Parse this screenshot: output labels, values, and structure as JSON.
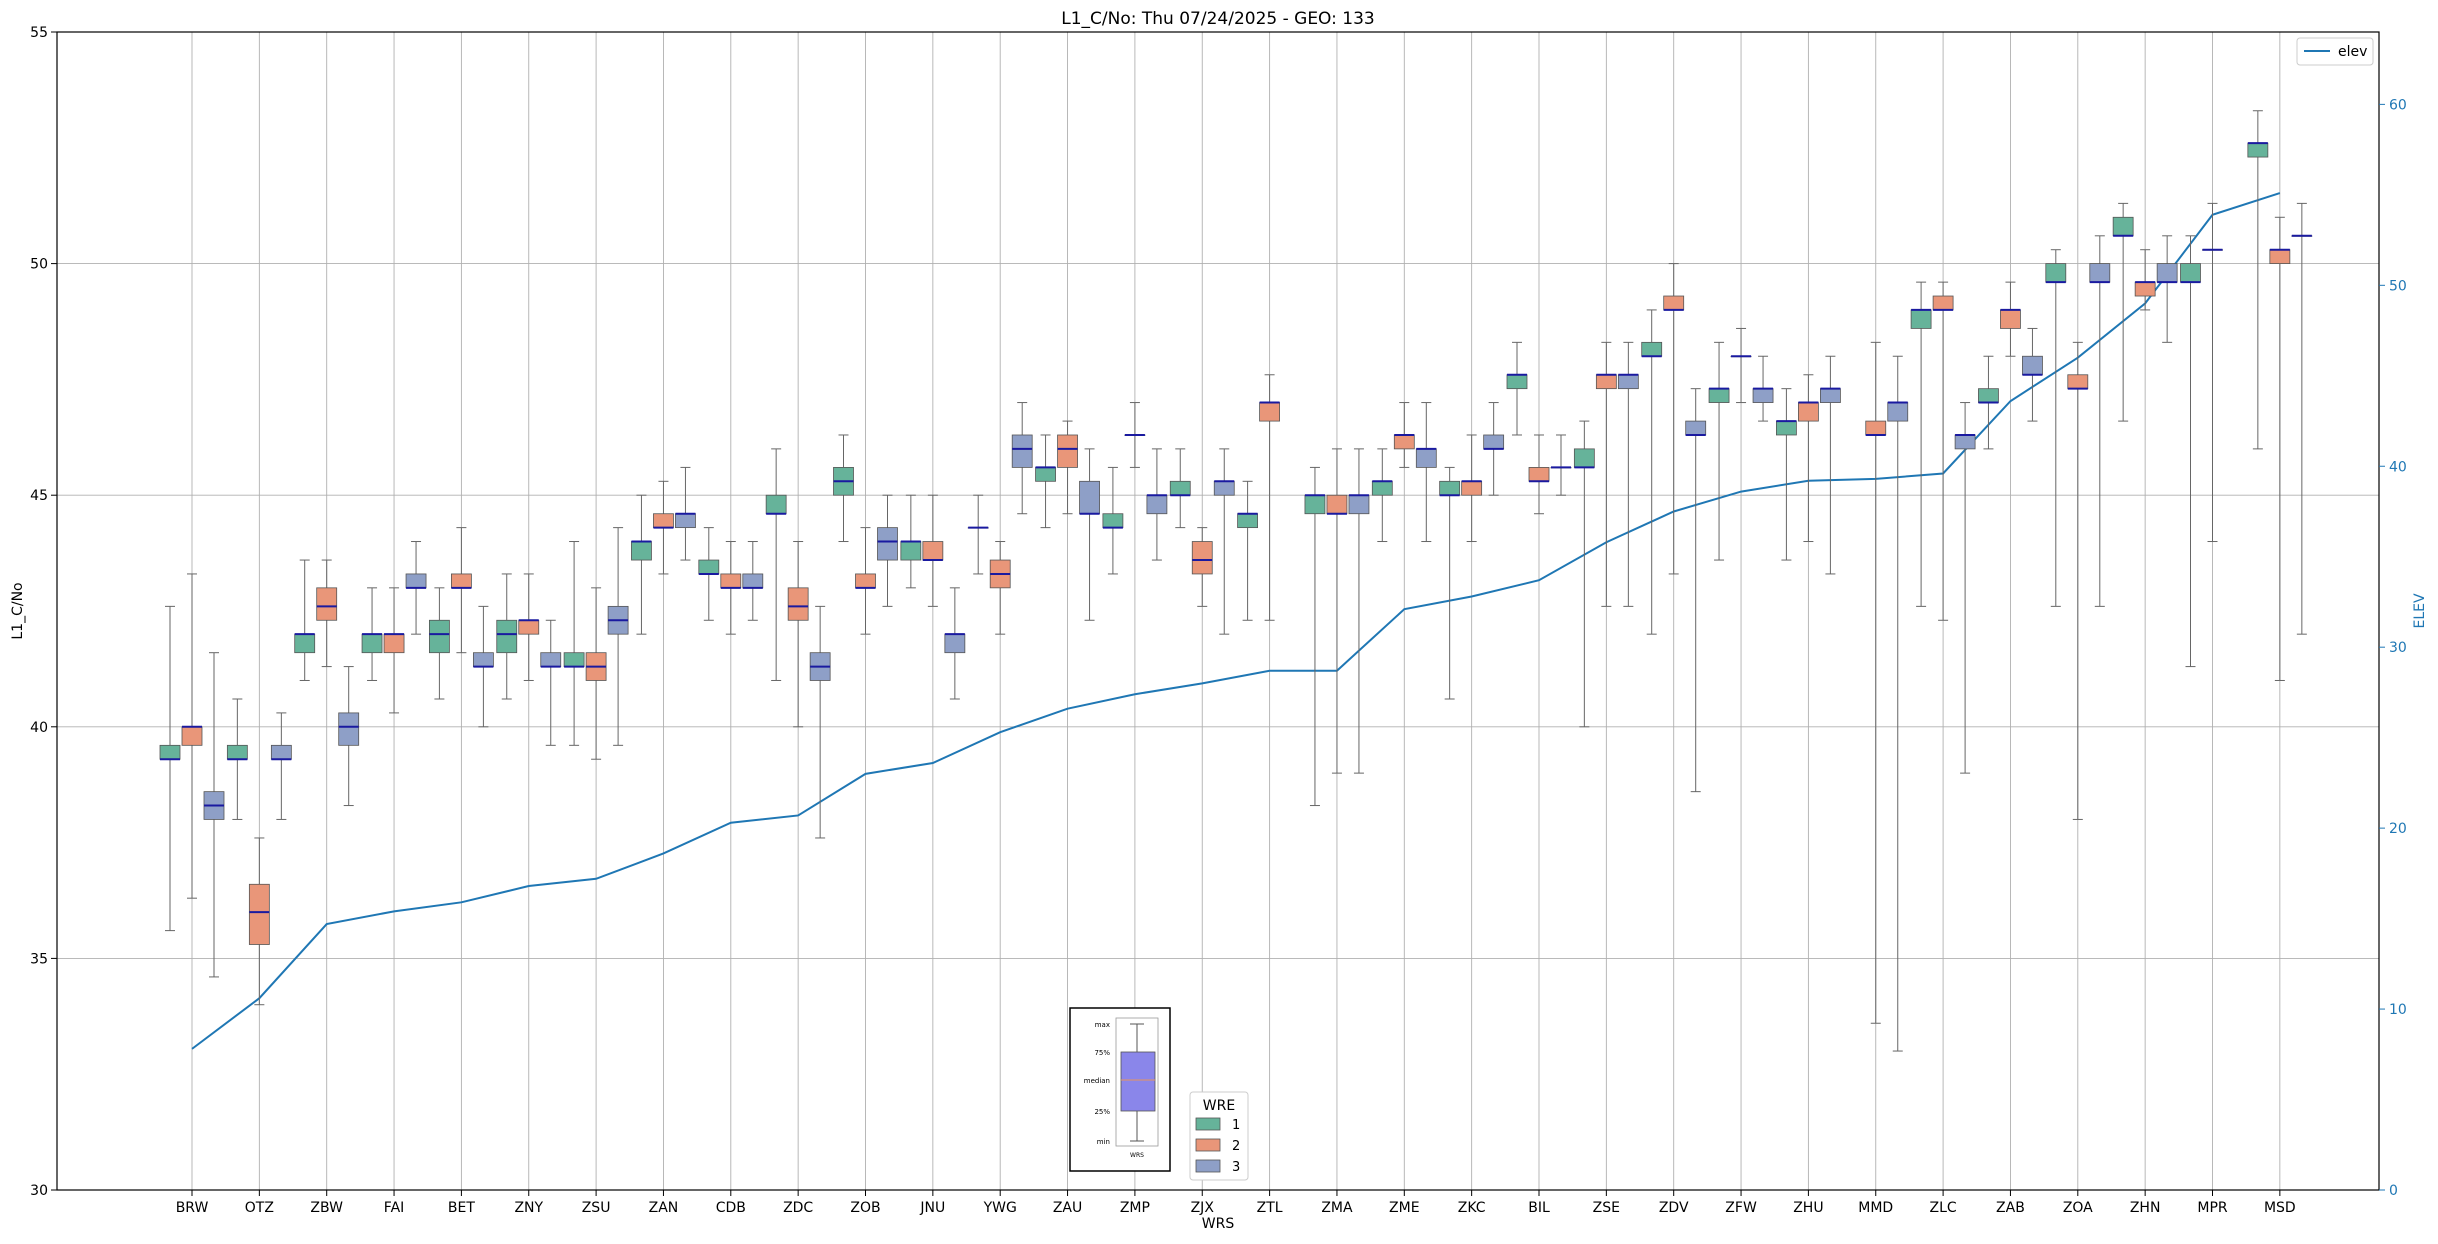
{
  "chart_data": {
    "type": "box",
    "title": "L1_C/No: Thu 07/24/2025 - GEO: 133",
    "xlabel": "WRS",
    "ylabel": "L1_C/No",
    "y2label": "ELEV",
    "ylim": [
      30,
      55
    ],
    "y2lim": [
      0,
      64
    ],
    "yticks": [
      30,
      35,
      40,
      45,
      50,
      55
    ],
    "y2ticks": [
      0,
      10,
      20,
      30,
      40,
      50,
      60
    ],
    "grid": true,
    "categories": [
      "BRW",
      "OTZ",
      "ZBW",
      "FAI",
      "BET",
      "ZNY",
      "ZSU",
      "ZAN",
      "CDB",
      "ZDC",
      "ZOB",
      "JNU",
      "YWG",
      "ZAU",
      "ZMP",
      "ZJX",
      "ZTL",
      "ZMA",
      "ZME",
      "ZKC",
      "BIL",
      "ZSE",
      "ZDV",
      "ZFW",
      "ZHU",
      "MMD",
      "ZLC",
      "ZAB",
      "ZOA",
      "ZHN",
      "MPR",
      "MSD"
    ],
    "legend_wre": {
      "title": "WRE",
      "entries": [
        {
          "label": "1",
          "color": "#66b39a"
        },
        {
          "label": "2",
          "color": "#e99679"
        },
        {
          "label": "3",
          "color": "#8e9fc7"
        }
      ]
    },
    "legend_elev": {
      "label": "elev",
      "color": "#1f77b4"
    },
    "key_labels": {
      "max": "max",
      "p75": "75%",
      "median": "median",
      "p25": "25%",
      "min": "min",
      "wrs": "WRS"
    },
    "elev": [
      7.8,
      10.6,
      14.7,
      15.4,
      15.9,
      16.8,
      17.2,
      18.6,
      20.3,
      20.7,
      23.0,
      23.6,
      25.3,
      26.6,
      27.4,
      28.0,
      28.7,
      28.7,
      32.1,
      32.8,
      33.7,
      35.8,
      37.5,
      38.6,
      39.2,
      39.3,
      39.6,
      43.6,
      46.0,
      49.0,
      53.9,
      55.1
    ],
    "series": [
      {
        "name": "1",
        "color": "#66b39a",
        "boxes": [
          {
            "cat": 0,
            "min": 35.6,
            "q1": 39.3,
            "med": 39.3,
            "q3": 39.6,
            "max": 42.6
          },
          {
            "cat": 1,
            "min": 38.0,
            "q1": 39.3,
            "med": 39.3,
            "q3": 39.6,
            "max": 40.6
          },
          {
            "cat": 2,
            "min": 41.0,
            "q1": 41.6,
            "med": 42.0,
            "q3": 42.0,
            "max": 43.6
          },
          {
            "cat": 3,
            "min": 41.0,
            "q1": 41.6,
            "med": 42.0,
            "q3": 42.0,
            "max": 43.0
          },
          {
            "cat": 4,
            "min": 40.6,
            "q1": 41.6,
            "med": 42.0,
            "q3": 42.3,
            "max": 43.0
          },
          {
            "cat": 5,
            "min": 40.6,
            "q1": 41.6,
            "med": 42.0,
            "q3": 42.3,
            "max": 43.3
          },
          {
            "cat": 6,
            "min": 39.6,
            "q1": 41.3,
            "med": 41.3,
            "q3": 41.6,
            "max": 44.0
          },
          {
            "cat": 7,
            "min": 42.0,
            "q1": 43.6,
            "med": 44.0,
            "q3": 44.0,
            "max": 45.0
          },
          {
            "cat": 8,
            "min": 42.3,
            "q1": 43.3,
            "med": 43.3,
            "q3": 43.6,
            "max": 44.3
          },
          {
            "cat": 9,
            "min": 41.0,
            "q1": 44.6,
            "med": 44.6,
            "q3": 45.0,
            "max": 46.0
          },
          {
            "cat": 10,
            "min": 44.0,
            "q1": 45.0,
            "med": 45.3,
            "q3": 45.6,
            "max": 46.3
          },
          {
            "cat": 11,
            "min": 43.0,
            "q1": 43.6,
            "med": 44.0,
            "q3": 44.0,
            "max": 45.0
          },
          {
            "cat": 12,
            "min": 43.3,
            "q1": 44.3,
            "med": 44.3,
            "q3": 44.3,
            "max": 45.0
          },
          {
            "cat": 13,
            "min": 44.3,
            "q1": 45.3,
            "med": 45.6,
            "q3": 45.6,
            "max": 46.3
          },
          {
            "cat": 14,
            "min": 43.3,
            "q1": 44.3,
            "med": 44.3,
            "q3": 44.6,
            "max": 45.6
          },
          {
            "cat": 15,
            "min": 44.3,
            "q1": 45.0,
            "med": 45.0,
            "q3": 45.3,
            "max": 46.0
          },
          {
            "cat": 16,
            "min": 42.3,
            "q1": 44.3,
            "med": 44.6,
            "q3": 44.6,
            "max": 45.3
          },
          {
            "cat": 17,
            "min": 38.3,
            "q1": 44.6,
            "med": 45.0,
            "q3": 45.0,
            "max": 45.6
          },
          {
            "cat": 18,
            "min": 44.0,
            "q1": 45.0,
            "med": 45.3,
            "q3": 45.3,
            "max": 46.0
          },
          {
            "cat": 19,
            "min": 40.6,
            "q1": 45.0,
            "med": 45.0,
            "q3": 45.3,
            "max": 45.6
          },
          {
            "cat": 20,
            "min": 46.3,
            "q1": 47.3,
            "med": 47.6,
            "q3": 47.6,
            "max": 48.3
          },
          {
            "cat": 21,
            "min": 40.0,
            "q1": 45.6,
            "med": 45.6,
            "q3": 46.0,
            "max": 46.6
          },
          {
            "cat": 22,
            "min": 42.0,
            "q1": 48.0,
            "med": 48.0,
            "q3": 48.3,
            "max": 49.0
          },
          {
            "cat": 23,
            "min": 43.6,
            "q1": 47.0,
            "med": 47.3,
            "q3": 47.3,
            "max": 48.3
          },
          {
            "cat": 24,
            "min": 43.6,
            "q1": 46.3,
            "med": 46.6,
            "q3": 46.6,
            "max": 47.3
          },
          {
            "cat": 26,
            "min": 42.6,
            "q1": 48.6,
            "med": 49.0,
            "q3": 49.0,
            "max": 49.6
          },
          {
            "cat": 27,
            "min": 46.0,
            "q1": 47.0,
            "med": 47.0,
            "q3": 47.3,
            "max": 48.0
          },
          {
            "cat": 28,
            "min": 42.6,
            "q1": 49.6,
            "med": 49.6,
            "q3": 50.0,
            "max": 50.3
          },
          {
            "cat": 29,
            "min": 46.6,
            "q1": 50.6,
            "med": 50.6,
            "q3": 51.0,
            "max": 51.3
          },
          {
            "cat": 30,
            "min": 41.3,
            "q1": 49.6,
            "med": 49.6,
            "q3": 50.0,
            "max": 50.6
          },
          {
            "cat": 31,
            "min": 46.0,
            "q1": 52.3,
            "med": 52.6,
            "q3": 52.6,
            "max": 53.3
          }
        ]
      },
      {
        "name": "2",
        "color": "#e99679",
        "boxes": [
          {
            "cat": 0,
            "min": 36.3,
            "q1": 39.6,
            "med": 40.0,
            "q3": 40.0,
            "max": 43.3
          },
          {
            "cat": 1,
            "min": 34.0,
            "q1": 35.3,
            "med": 36.0,
            "q3": 36.6,
            "max": 37.6
          },
          {
            "cat": 2,
            "min": 41.3,
            "q1": 42.3,
            "med": 42.6,
            "q3": 43.0,
            "max": 43.6
          },
          {
            "cat": 3,
            "min": 40.3,
            "q1": 41.6,
            "med": 42.0,
            "q3": 42.0,
            "max": 43.0
          },
          {
            "cat": 4,
            "min": 41.6,
            "q1": 43.0,
            "med": 43.0,
            "q3": 43.3,
            "max": 44.3
          },
          {
            "cat": 5,
            "min": 41.0,
            "q1": 42.0,
            "med": 42.3,
            "q3": 42.3,
            "max": 43.3
          },
          {
            "cat": 6,
            "min": 39.3,
            "q1": 41.0,
            "med": 41.3,
            "q3": 41.6,
            "max": 43.0
          },
          {
            "cat": 7,
            "min": 43.3,
            "q1": 44.3,
            "med": 44.3,
            "q3": 44.6,
            "max": 45.3
          },
          {
            "cat": 8,
            "min": 42.0,
            "q1": 43.0,
            "med": 43.0,
            "q3": 43.3,
            "max": 44.0
          },
          {
            "cat": 9,
            "min": 40.0,
            "q1": 42.3,
            "med": 42.6,
            "q3": 43.0,
            "max": 44.0
          },
          {
            "cat": 10,
            "min": 42.0,
            "q1": 43.0,
            "med": 43.0,
            "q3": 43.3,
            "max": 44.3
          },
          {
            "cat": 11,
            "min": 42.6,
            "q1": 43.6,
            "med": 43.6,
            "q3": 44.0,
            "max": 45.0
          },
          {
            "cat": 12,
            "min": 42.0,
            "q1": 43.0,
            "med": 43.3,
            "q3": 43.6,
            "max": 44.0
          },
          {
            "cat": 13,
            "min": 44.6,
            "q1": 45.6,
            "med": 46.0,
            "q3": 46.3,
            "max": 46.6
          },
          {
            "cat": 14,
            "min": 45.6,
            "q1": 46.3,
            "med": 46.3,
            "q3": 46.3,
            "max": 47.0
          },
          {
            "cat": 15,
            "min": 42.6,
            "q1": 43.3,
            "med": 43.6,
            "q3": 44.0,
            "max": 44.3
          },
          {
            "cat": 16,
            "min": 42.3,
            "q1": 46.6,
            "med": 47.0,
            "q3": 47.0,
            "max": 47.6
          },
          {
            "cat": 17,
            "min": 39.0,
            "q1": 44.6,
            "med": 44.6,
            "q3": 45.0,
            "max": 46.0
          },
          {
            "cat": 18,
            "min": 45.6,
            "q1": 46.0,
            "med": 46.3,
            "q3": 46.3,
            "max": 47.0
          },
          {
            "cat": 19,
            "min": 44.0,
            "q1": 45.0,
            "med": 45.3,
            "q3": 45.3,
            "max": 46.3
          },
          {
            "cat": 20,
            "min": 44.6,
            "q1": 45.3,
            "med": 45.3,
            "q3": 45.6,
            "max": 46.3
          },
          {
            "cat": 21,
            "min": 42.6,
            "q1": 47.3,
            "med": 47.6,
            "q3": 47.6,
            "max": 48.3
          },
          {
            "cat": 22,
            "min": 43.3,
            "q1": 49.0,
            "med": 49.0,
            "q3": 49.3,
            "max": 50.0
          },
          {
            "cat": 23,
            "min": 47.0,
            "q1": 48.0,
            "med": 48.0,
            "q3": 48.0,
            "max": 48.6
          },
          {
            "cat": 24,
            "min": 44.0,
            "q1": 46.6,
            "med": 47.0,
            "q3": 47.0,
            "max": 47.6
          },
          {
            "cat": 25,
            "min": 33.6,
            "q1": 46.3,
            "med": 46.3,
            "q3": 46.6,
            "max": 48.3
          },
          {
            "cat": 26,
            "min": 42.3,
            "q1": 49.0,
            "med": 49.0,
            "q3": 49.3,
            "max": 49.6
          },
          {
            "cat": 27,
            "min": 48.0,
            "q1": 48.6,
            "med": 49.0,
            "q3": 49.0,
            "max": 49.6
          },
          {
            "cat": 28,
            "min": 38.0,
            "q1": 47.3,
            "med": 47.3,
            "q3": 47.6,
            "max": 48.3
          },
          {
            "cat": 29,
            "min": 49.0,
            "q1": 49.3,
            "med": 49.6,
            "q3": 49.6,
            "max": 50.3
          },
          {
            "cat": 30,
            "min": 44.0,
            "q1": 50.3,
            "med": 50.3,
            "q3": 50.3,
            "max": 51.3
          },
          {
            "cat": 31,
            "min": 41.0,
            "q1": 50.0,
            "med": 50.3,
            "q3": 50.3,
            "max": 51.0
          }
        ]
      },
      {
        "name": "3",
        "color": "#8e9fc7",
        "boxes": [
          {
            "cat": 0,
            "min": 34.6,
            "q1": 38.0,
            "med": 38.3,
            "q3": 38.6,
            "max": 41.6
          },
          {
            "cat": 1,
            "min": 38.0,
            "q1": 39.3,
            "med": 39.3,
            "q3": 39.6,
            "max": 40.3
          },
          {
            "cat": 2,
            "min": 38.3,
            "q1": 39.6,
            "med": 40.0,
            "q3": 40.3,
            "max": 41.3
          },
          {
            "cat": 3,
            "min": 42.0,
            "q1": 43.0,
            "med": 43.0,
            "q3": 43.3,
            "max": 44.0
          },
          {
            "cat": 4,
            "min": 40.0,
            "q1": 41.3,
            "med": 41.3,
            "q3": 41.6,
            "max": 42.6
          },
          {
            "cat": 5,
            "min": 39.6,
            "q1": 41.3,
            "med": 41.3,
            "q3": 41.6,
            "max": 42.3
          },
          {
            "cat": 6,
            "min": 39.6,
            "q1": 42.0,
            "med": 42.3,
            "q3": 42.6,
            "max": 44.3
          },
          {
            "cat": 7,
            "min": 43.6,
            "q1": 44.3,
            "med": 44.6,
            "q3": 44.6,
            "max": 45.6
          },
          {
            "cat": 8,
            "min": 42.3,
            "q1": 43.0,
            "med": 43.0,
            "q3": 43.3,
            "max": 44.0
          },
          {
            "cat": 9,
            "min": 37.6,
            "q1": 41.0,
            "med": 41.3,
            "q3": 41.6,
            "max": 42.6
          },
          {
            "cat": 10,
            "min": 42.6,
            "q1": 43.6,
            "med": 44.0,
            "q3": 44.3,
            "max": 45.0
          },
          {
            "cat": 11,
            "min": 40.6,
            "q1": 41.6,
            "med": 42.0,
            "q3": 42.0,
            "max": 43.0
          },
          {
            "cat": 12,
            "min": 44.6,
            "q1": 45.6,
            "med": 46.0,
            "q3": 46.3,
            "max": 47.0
          },
          {
            "cat": 13,
            "min": 42.3,
            "q1": 44.6,
            "med": 44.6,
            "q3": 45.3,
            "max": 46.0
          },
          {
            "cat": 14,
            "min": 43.6,
            "q1": 44.6,
            "med": 45.0,
            "q3": 45.0,
            "max": 46.0
          },
          {
            "cat": 15,
            "min": 42.0,
            "q1": 45.0,
            "med": 45.3,
            "q3": 45.3,
            "max": 46.0
          },
          {
            "cat": 17,
            "min": 39.0,
            "q1": 44.6,
            "med": 45.0,
            "q3": 45.0,
            "max": 46.0
          },
          {
            "cat": 18,
            "min": 44.0,
            "q1": 45.6,
            "med": 46.0,
            "q3": 46.0,
            "max": 47.0
          },
          {
            "cat": 19,
            "min": 45.0,
            "q1": 46.0,
            "med": 46.0,
            "q3": 46.3,
            "max": 47.0
          },
          {
            "cat": 20,
            "min": 45.0,
            "q1": 45.6,
            "med": 45.6,
            "q3": 45.6,
            "max": 46.3
          },
          {
            "cat": 21,
            "min": 42.6,
            "q1": 47.3,
            "med": 47.6,
            "q3": 47.6,
            "max": 48.3
          },
          {
            "cat": 22,
            "min": 38.6,
            "q1": 46.3,
            "med": 46.3,
            "q3": 46.6,
            "max": 47.3
          },
          {
            "cat": 23,
            "min": 46.6,
            "q1": 47.0,
            "med": 47.3,
            "q3": 47.3,
            "max": 48.0
          },
          {
            "cat": 24,
            "min": 43.3,
            "q1": 47.0,
            "med": 47.3,
            "q3": 47.3,
            "max": 48.0
          },
          {
            "cat": 25,
            "min": 33.0,
            "q1": 46.6,
            "med": 47.0,
            "q3": 47.0,
            "max": 48.0
          },
          {
            "cat": 26,
            "min": 39.0,
            "q1": 46.0,
            "med": 46.3,
            "q3": 46.3,
            "max": 47.0
          },
          {
            "cat": 27,
            "min": 46.6,
            "q1": 47.6,
            "med": 47.6,
            "q3": 48.0,
            "max": 48.6
          },
          {
            "cat": 28,
            "min": 42.6,
            "q1": 49.6,
            "med": 49.6,
            "q3": 50.0,
            "max": 50.6
          },
          {
            "cat": 29,
            "min": 48.3,
            "q1": 49.6,
            "med": 49.6,
            "q3": 50.0,
            "max": 50.6
          },
          {
            "cat": 31,
            "min": 42.0,
            "q1": 50.6,
            "med": 50.6,
            "q3": 50.6,
            "max": 51.3
          }
        ]
      }
    ]
  }
}
